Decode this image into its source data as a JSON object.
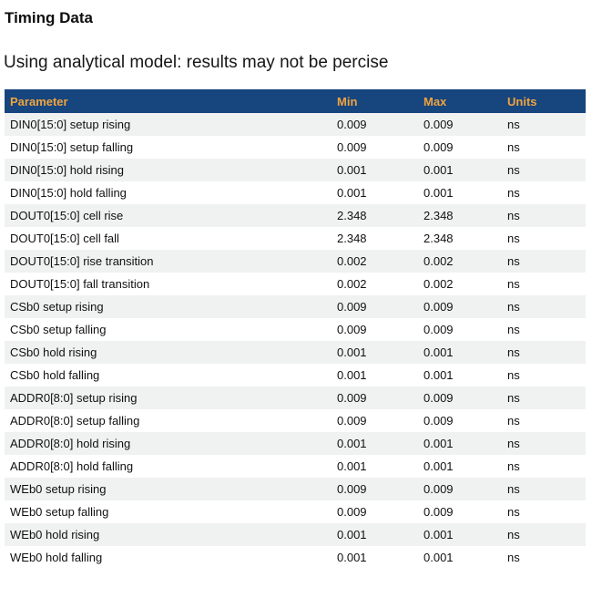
{
  "page": {
    "title": "Timing Data",
    "subtitle": "Using analytical model: results may not be percise"
  },
  "table": {
    "columns": [
      {
        "key": "parameter",
        "label": "Parameter"
      },
      {
        "key": "min",
        "label": "Min"
      },
      {
        "key": "max",
        "label": "Max"
      },
      {
        "key": "units",
        "label": "Units"
      }
    ],
    "rows": [
      {
        "parameter": "DIN0[15:0] setup rising",
        "min": "0.009",
        "max": "0.009",
        "units": "ns"
      },
      {
        "parameter": "DIN0[15:0] setup falling",
        "min": "0.009",
        "max": "0.009",
        "units": "ns"
      },
      {
        "parameter": "DIN0[15:0] hold rising",
        "min": "0.001",
        "max": "0.001",
        "units": "ns"
      },
      {
        "parameter": "DIN0[15:0] hold falling",
        "min": "0.001",
        "max": "0.001",
        "units": "ns"
      },
      {
        "parameter": "DOUT0[15:0] cell rise",
        "min": "2.348",
        "max": "2.348",
        "units": "ns"
      },
      {
        "parameter": "DOUT0[15:0] cell fall",
        "min": "2.348",
        "max": "2.348",
        "units": "ns"
      },
      {
        "parameter": "DOUT0[15:0] rise transition",
        "min": "0.002",
        "max": "0.002",
        "units": "ns"
      },
      {
        "parameter": "DOUT0[15:0] fall transition",
        "min": "0.002",
        "max": "0.002",
        "units": "ns"
      },
      {
        "parameter": "CSb0 setup rising",
        "min": "0.009",
        "max": "0.009",
        "units": "ns"
      },
      {
        "parameter": "CSb0 setup falling",
        "min": "0.009",
        "max": "0.009",
        "units": "ns"
      },
      {
        "parameter": "CSb0 hold rising",
        "min": "0.001",
        "max": "0.001",
        "units": "ns"
      },
      {
        "parameter": "CSb0 hold falling",
        "min": "0.001",
        "max": "0.001",
        "units": "ns"
      },
      {
        "parameter": "ADDR0[8:0] setup rising",
        "min": "0.009",
        "max": "0.009",
        "units": "ns"
      },
      {
        "parameter": "ADDR0[8:0] setup falling",
        "min": "0.009",
        "max": "0.009",
        "units": "ns"
      },
      {
        "parameter": "ADDR0[8:0] hold rising",
        "min": "0.001",
        "max": "0.001",
        "units": "ns"
      },
      {
        "parameter": "ADDR0[8:0] hold falling",
        "min": "0.001",
        "max": "0.001",
        "units": "ns"
      },
      {
        "parameter": "WEb0 setup rising",
        "min": "0.009",
        "max": "0.009",
        "units": "ns"
      },
      {
        "parameter": "WEb0 setup falling",
        "min": "0.009",
        "max": "0.009",
        "units": "ns"
      },
      {
        "parameter": "WEb0 hold rising",
        "min": "0.001",
        "max": "0.001",
        "units": "ns"
      },
      {
        "parameter": "WEb0 hold falling",
        "min": "0.001",
        "max": "0.001",
        "units": "ns"
      }
    ]
  },
  "colors": {
    "header_bg": "#17457e",
    "header_text": "#f0a43e",
    "alt_row_bg": "#f0f1f1",
    "body_text": "#111111"
  }
}
